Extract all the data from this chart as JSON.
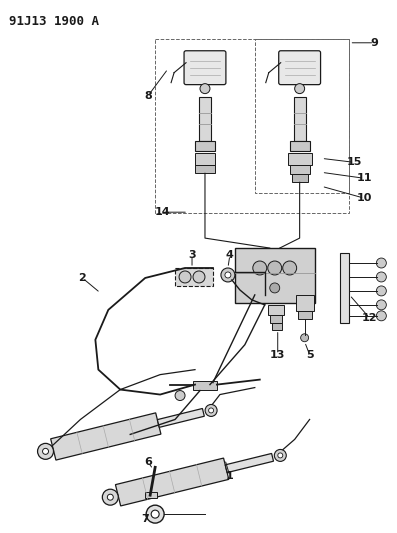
{
  "title": "91J13 1900 A",
  "bg_color": "#ffffff",
  "line_color": "#1a1a1a",
  "title_fontsize": 9,
  "label_fontsize": 8,
  "figsize": [
    3.97,
    5.33
  ],
  "dpi": 100
}
